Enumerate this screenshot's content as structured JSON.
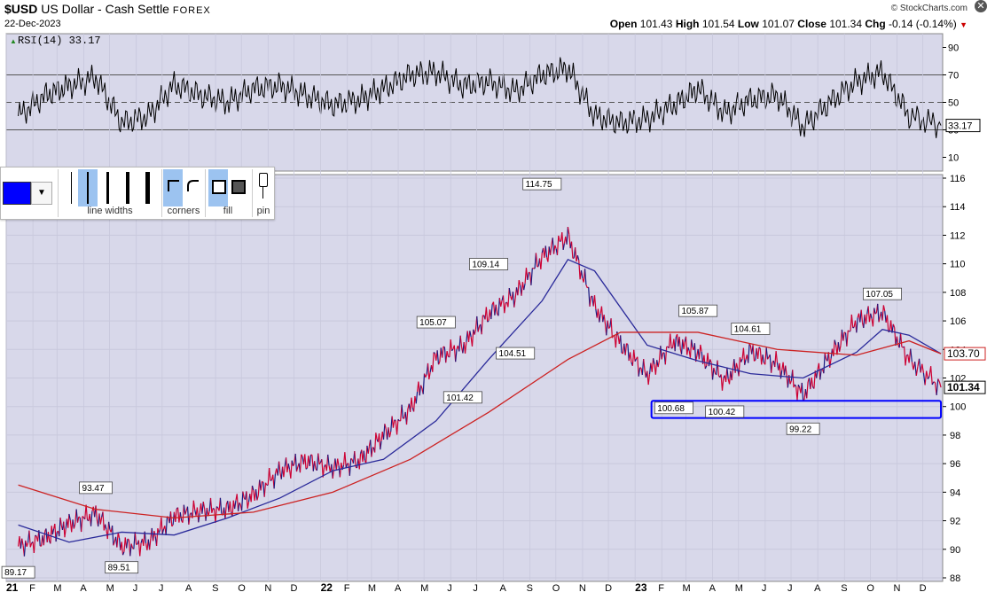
{
  "header": {
    "symbol": "$USD",
    "name": "US Dollar - Cash Settle",
    "exchange": "FOREX",
    "date": "22-Dec-2023",
    "brand": "© StockCharts.com",
    "open_label": "Open",
    "open": "101.43",
    "high_label": "High",
    "high": "101.54",
    "low_label": "Low",
    "low": "101.07",
    "close_label": "Close",
    "close": "101.34",
    "chg_label": "Chg",
    "chg": "-0.14 (-0.14%)",
    "chg_arrow": "▼"
  },
  "toolbar": {
    "line_widths_label": "line widths",
    "corners_label": "corners",
    "fill_label": "fill",
    "pin_label": "pin",
    "swatch_color": "#0000ff"
  },
  "chart_data": [
    {
      "type": "line",
      "title": "RSI(14) 33.17",
      "yticks": [
        10,
        30,
        50,
        70,
        90
      ],
      "ylim": [
        0,
        100
      ],
      "reference_lines": [
        70,
        50,
        30
      ],
      "series": [
        {
          "color": "#000000",
          "x": [
            "2021-01",
            "2021-02",
            "2021-03",
            "2021-04",
            "2021-05",
            "2021-06",
            "2021-07",
            "2021-08",
            "2021-09",
            "2021-10",
            "2021-11",
            "2021-12",
            "2022-01",
            "2022-02",
            "2022-03",
            "2022-04",
            "2022-05",
            "2022-06",
            "2022-07",
            "2022-08",
            "2022-09",
            "2022-10",
            "2022-11",
            "2022-12",
            "2023-01",
            "2023-02",
            "2023-03",
            "2023-04",
            "2023-05",
            "2023-06",
            "2023-07",
            "2023-08",
            "2023-09",
            "2023-10",
            "2023-11",
            "2023-12-22"
          ],
          "values": [
            40,
            55,
            62,
            68,
            35,
            40,
            63,
            55,
            50,
            60,
            62,
            55,
            48,
            52,
            60,
            70,
            72,
            62,
            65,
            58,
            70,
            75,
            40,
            35,
            38,
            48,
            60,
            42,
            52,
            55,
            32,
            50,
            65,
            72,
            40,
            33.17
          ]
        }
      ],
      "last_value_label": "33.17"
    },
    {
      "type": "line",
      "ylim": [
        88,
        116
      ],
      "yticks": [
        88,
        90,
        92,
        94,
        96,
        98,
        100,
        102,
        104,
        106,
        108,
        110,
        112,
        114,
        116
      ],
      "x_tick_labels": [
        "21",
        "F",
        "M",
        "A",
        "M",
        "J",
        "J",
        "A",
        "S",
        "O",
        "N",
        "D",
        "22",
        "F",
        "M",
        "A",
        "M",
        "J",
        "J",
        "A",
        "S",
        "O",
        "N",
        "D",
        "23",
        "F",
        "M",
        "A",
        "M",
        "J",
        "J",
        "A",
        "S",
        "O",
        "N",
        "D"
      ],
      "series": [
        {
          "color": "#cc0033",
          "x": [
            "2021-01",
            "2021-02",
            "2021-03",
            "2021-04",
            "2021-05",
            "2021-06",
            "2021-07",
            "2021-08",
            "2021-09",
            "2021-10",
            "2021-11",
            "2021-12",
            "2022-01",
            "2022-02",
            "2022-03",
            "2022-04",
            "2022-05",
            "2022-06",
            "2022-07",
            "2022-08",
            "2022-09",
            "2022-10",
            "2022-11",
            "2022-12",
            "2023-01",
            "2023-02",
            "2023-03",
            "2023-04",
            "2023-05",
            "2023-06",
            "2023-07",
            "2023-08",
            "2023-09",
            "2023-10",
            "2023-11",
            "2023-12-22"
          ],
          "values": [
            90.2,
            90.8,
            91.8,
            92.5,
            90.2,
            90.5,
            92.3,
            92.7,
            92.8,
            93.8,
            95.5,
            96.2,
            95.7,
            96.2,
            98.0,
            99.8,
            103.5,
            104.2,
            106.5,
            107.8,
            110.5,
            111.9,
            107.0,
            104.4,
            102.2,
            104.6,
            103.8,
            101.8,
            103.9,
            103.0,
            100.8,
            103.5,
            106.0,
            106.6,
            103.3,
            101.34
          ]
        },
        {
          "color": "#2a2a9a",
          "x": [
            "2021-01",
            "2021-03",
            "2021-05",
            "2021-07",
            "2021-09",
            "2021-11",
            "2022-01",
            "2022-03",
            "2022-05",
            "2022-07",
            "2022-09",
            "2022-10",
            "2022-11",
            "2023-01",
            "2023-03",
            "2023-05",
            "2023-07",
            "2023-09",
            "2023-10",
            "2023-11",
            "2023-12-22"
          ],
          "values": [
            91.7,
            90.5,
            91.2,
            91.0,
            92.2,
            93.6,
            95.5,
            96.3,
            99.0,
            103.3,
            107.4,
            110.3,
            109.5,
            104.3,
            103.2,
            102.3,
            102.0,
            103.8,
            105.4,
            105.0,
            103.7
          ]
        },
        {
          "color": "#cc2222",
          "x": [
            "2021-01",
            "2021-04",
            "2021-07",
            "2021-10",
            "2022-01",
            "2022-04",
            "2022-07",
            "2022-10",
            "2022-12",
            "2023-03",
            "2023-06",
            "2023-09",
            "2023-11",
            "2023-12-22"
          ],
          "values": [
            94.5,
            92.8,
            92.2,
            92.6,
            94.0,
            96.3,
            99.6,
            103.3,
            105.2,
            105.2,
            104.0,
            103.6,
            104.6,
            103.7
          ]
        }
      ],
      "annotations": [
        {
          "label": "93.47",
          "x": "2021-04",
          "y": 93.47,
          "pos": "above"
        },
        {
          "label": "89.17",
          "x": "2021-01",
          "y": 89.17,
          "pos": "below"
        },
        {
          "label": "89.51",
          "x": "2021-05",
          "y": 89.51,
          "pos": "below"
        },
        {
          "label": "105.07",
          "x": "2022-05",
          "y": 105.07,
          "pos": "above"
        },
        {
          "label": "101.42",
          "x": "2022-06",
          "y": 101.42,
          "pos": "below"
        },
        {
          "label": "109.14",
          "x": "2022-07",
          "y": 109.14,
          "pos": "above"
        },
        {
          "label": "104.51",
          "x": "2022-08",
          "y": 104.51,
          "pos": "below"
        },
        {
          "label": "114.75",
          "x": "2022-09",
          "y": 114.75,
          "pos": "above"
        },
        {
          "label": "100.68",
          "x": "2023-02",
          "y": 100.68,
          "pos": "below"
        },
        {
          "label": "105.87",
          "x": "2023-03",
          "y": 105.87,
          "pos": "above"
        },
        {
          "label": "100.42",
          "x": "2023-04",
          "y": 100.42,
          "pos": "below"
        },
        {
          "label": "104.61",
          "x": "2023-05",
          "y": 104.61,
          "pos": "above"
        },
        {
          "label": "99.22",
          "x": "2023-07",
          "y": 99.22,
          "pos": "below"
        },
        {
          "label": "107.05",
          "x": "2023-10",
          "y": 107.05,
          "pos": "above"
        }
      ],
      "support_box": {
        "x_from": "2023-01-20",
        "x_to": "2023-12-22",
        "y_from": 99.2,
        "y_to": 100.4,
        "color": "#0000ff"
      },
      "last_value_labels": [
        {
          "label": "103.70",
          "value": 103.7
        },
        {
          "label": "101.34",
          "value": 101.34
        }
      ]
    }
  ]
}
